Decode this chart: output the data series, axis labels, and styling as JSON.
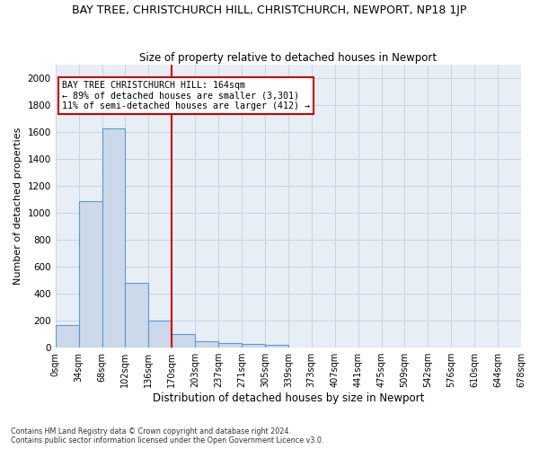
{
  "title": "BAY TREE, CHRISTCHURCH HILL, CHRISTCHURCH, NEWPORT, NP18 1JP",
  "subtitle": "Size of property relative to detached houses in Newport",
  "xlabel": "Distribution of detached houses by size in Newport",
  "ylabel": "Number of detached properties",
  "footnote1": "Contains HM Land Registry data © Crown copyright and database right 2024.",
  "footnote2": "Contains public sector information licensed under the Open Government Licence v3.0.",
  "bar_values": [
    165,
    1090,
    1630,
    480,
    200,
    100,
    45,
    35,
    25,
    20,
    0,
    0,
    0,
    0,
    0,
    0,
    0,
    0,
    0,
    0
  ],
  "tick_labels": [
    "0sqm",
    "34sqm",
    "68sqm",
    "102sqm",
    "136sqm",
    "170sqm",
    "203sqm",
    "237sqm",
    "271sqm",
    "305sqm",
    "339sqm",
    "373sqm",
    "407sqm",
    "441sqm",
    "475sqm",
    "509sqm",
    "542sqm",
    "576sqm",
    "610sqm",
    "644sqm",
    "678sqm"
  ],
  "bar_color": "#ccd9ea",
  "bar_edge_color": "#5a99d4",
  "vline_index": 5,
  "vline_color": "#cc0000",
  "annotation_line1": "BAY TREE CHRISTCHURCH HILL: 164sqm",
  "annotation_line2": "← 89% of detached houses are smaller (3,301)",
  "annotation_line3": "11% of semi-detached houses are larger (412) →",
  "annotation_box_color": "#cc0000",
  "ylim": [
    0,
    2100
  ],
  "yticks": [
    0,
    200,
    400,
    600,
    800,
    1000,
    1200,
    1400,
    1600,
    1800,
    2000
  ],
  "grid_color": "#c8d4e4",
  "bg_color": "#e8eef6",
  "title_fontsize": 9,
  "subtitle_fontsize": 8.5,
  "ylabel_fontsize": 8,
  "xlabel_fontsize": 8.5,
  "tick_fontsize": 7,
  "ytick_fontsize": 7.5
}
